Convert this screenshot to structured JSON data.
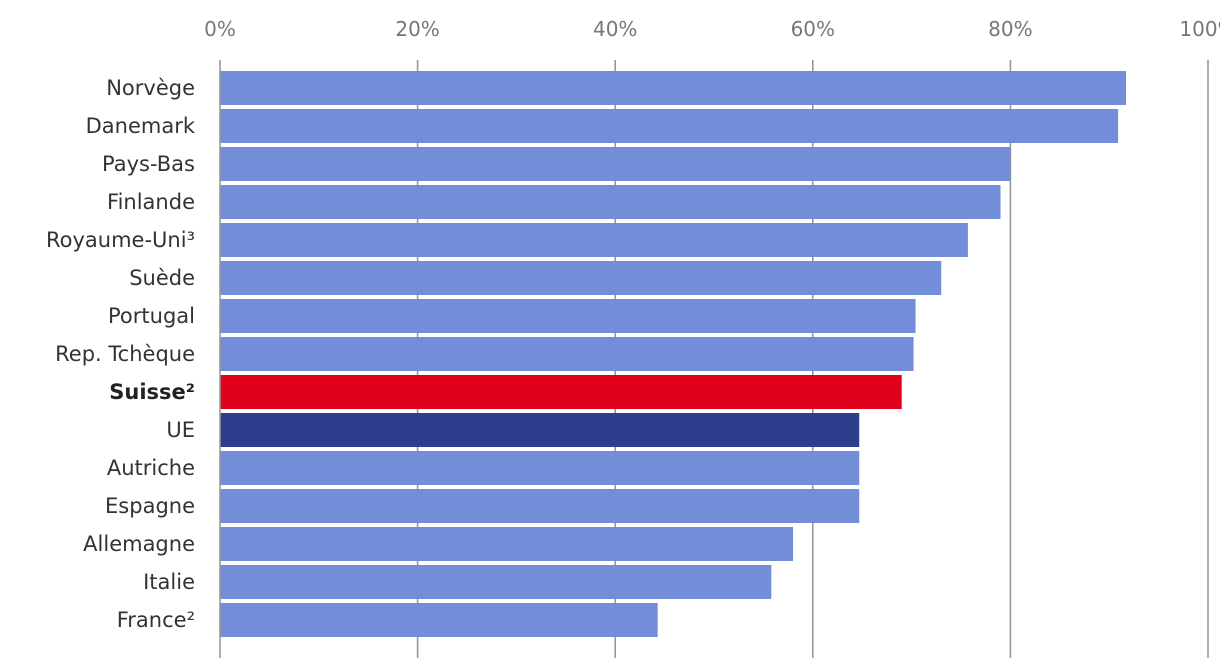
{
  "chart_data": {
    "type": "bar",
    "orientation": "horizontal",
    "title": "",
    "xlabel": "",
    "ylabel": "",
    "xlim": [
      0,
      100
    ],
    "x_ticks": [
      "0%",
      "20%",
      "40%",
      "60%",
      "80%",
      "100%"
    ],
    "x_tick_values": [
      0,
      20,
      40,
      60,
      80,
      100
    ],
    "axis_position": "top",
    "grid": true,
    "legend": "none",
    "categories": [
      "Norvège",
      "Danemark",
      "Pays-Bas",
      "Finlande",
      "Royaume-Uni³",
      "Suède",
      "Portugal",
      "Rep. Tchèque",
      "Suisse²",
      "UE",
      "Autriche",
      "Espagne",
      "Allemagne",
      "Italie",
      "France²"
    ],
    "values": [
      91.7,
      90.9,
      80.0,
      79.0,
      75.7,
      73.0,
      70.4,
      70.2,
      69.0,
      64.7,
      64.7,
      64.7,
      58.0,
      55.8,
      44.3
    ],
    "highlight": {
      "Suisse²": "#e0001b",
      "UE": "#2d3f8c"
    },
    "bold_categories": [
      "Suisse²"
    ],
    "colors": {
      "default_bar": "#738ed9",
      "switzerland_bar": "#e0001b",
      "eu_bar": "#2d3f8c",
      "gridline": "#999999",
      "tick_text": "#777777",
      "label_text": "#333333"
    }
  }
}
